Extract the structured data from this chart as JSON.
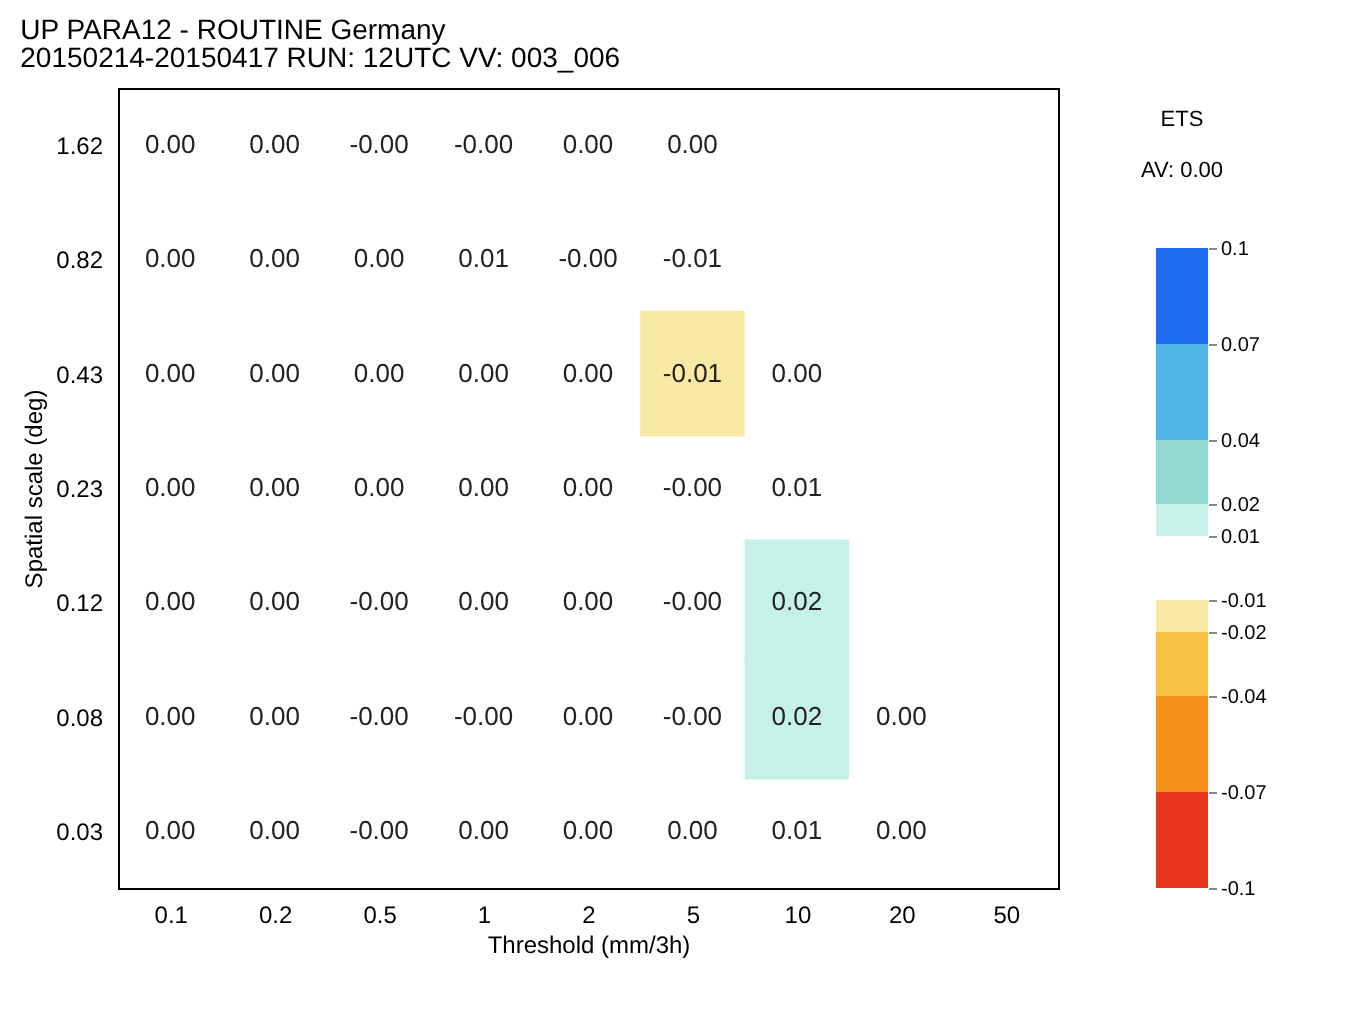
{
  "chart_data": {
    "type": "heatmap",
    "title": "UP PARA12 - ROUTINE Germany",
    "subtitle": "20150214-20150417 RUN: 12UTC VV: 003_006",
    "xlabel": "Threshold (mm/3h)",
    "ylabel": "Spatial scale (deg)",
    "legend_title": "ETS",
    "annotations": [
      "AV: 0.00"
    ],
    "categories": [
      "0.1",
      "0.2",
      "0.5",
      "1",
      "2",
      "5",
      "10",
      "20",
      "50"
    ],
    "y_categories": [
      "1.62",
      "0.82",
      "0.43",
      "0.23",
      "0.12",
      "0.08",
      "0.03"
    ],
    "cells": [
      [
        0,
        0,
        -0.001,
        -0.001,
        0,
        0,
        null,
        null,
        null
      ],
      [
        0,
        0,
        0,
        0.008,
        -0.001,
        -0.008,
        null,
        null,
        null
      ],
      [
        0,
        0,
        0,
        0,
        0,
        -0.012,
        0,
        null,
        null
      ],
      [
        0,
        0,
        0,
        0,
        0,
        -0.001,
        0.008,
        null,
        null
      ],
      [
        0,
        0,
        -0.001,
        0,
        0,
        -0.001,
        0.018,
        null,
        null
      ],
      [
        0,
        0,
        -0.001,
        -0.001,
        0,
        -0.001,
        0.018,
        0,
        null
      ],
      [
        0,
        0,
        -0.001,
        0,
        0,
        0,
        0.008,
        0,
        null
      ]
    ],
    "cell_labels": [
      [
        "0.00",
        "0.00",
        "-0.00",
        "-0.00",
        "0.00",
        "0.00",
        null,
        null,
        null
      ],
      [
        "0.00",
        "0.00",
        "0.00",
        "0.01",
        "-0.00",
        "-0.01",
        null,
        null,
        null
      ],
      [
        "0.00",
        "0.00",
        "0.00",
        "0.00",
        "0.00",
        "-0.01",
        "0.00",
        null,
        null
      ],
      [
        "0.00",
        "0.00",
        "0.00",
        "0.00",
        "0.00",
        "-0.00",
        "0.01",
        null,
        null
      ],
      [
        "0.00",
        "0.00",
        "-0.00",
        "0.00",
        "0.00",
        "-0.00",
        "0.02",
        null,
        null
      ],
      [
        "0.00",
        "0.00",
        "-0.00",
        "-0.00",
        "0.00",
        "-0.00",
        "0.02",
        "0.00",
        null
      ],
      [
        "0.00",
        "0.00",
        "-0.00",
        "0.00",
        "0.00",
        "0.00",
        "0.01",
        "0.00",
        null
      ]
    ],
    "clim": [
      -0.1,
      0.1
    ],
    "cticks": [
      -0.1,
      -0.07,
      -0.04,
      -0.02,
      -0.01,
      0.01,
      0.02,
      0.04,
      0.07,
      0.1
    ],
    "colors": [
      "#e8361c",
      "#f7901a",
      "#f7c043",
      "#f9e9a4",
      null,
      "#c6f1e8",
      "#91d9d0",
      "#4fb6e6",
      "#1e6cf0"
    ]
  }
}
